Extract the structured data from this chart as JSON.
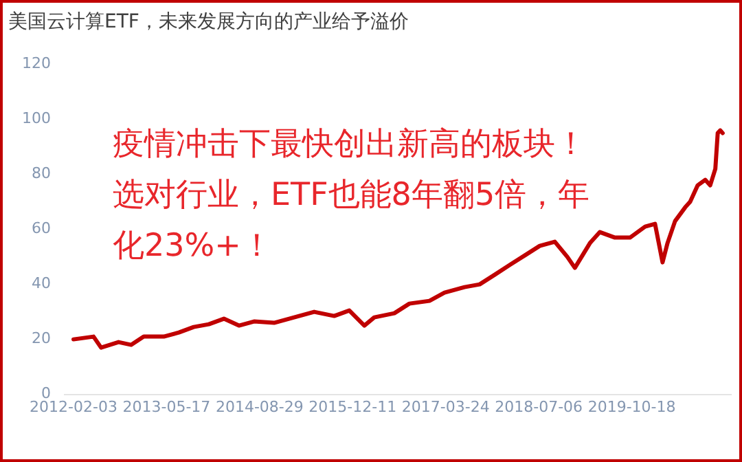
{
  "chart_data": {
    "type": "line",
    "title": "美国云计算ETF，未来发展方向的产业给予溢价",
    "annotations": [
      "疫情冲击下最快创出新高的板块！选对行业，ETF也能8年翻5倍，年化23%+！"
    ],
    "x": [
      "2012-02-03",
      "2012-05-14",
      "2012-06-21",
      "2012-09-17",
      "2012-11-20",
      "2013-01-22",
      "2013-05-03",
      "2013-07-18",
      "2013-10-01",
      "2013-12-16",
      "2014-03-02",
      "2014-05-17",
      "2014-08-01",
      "2014-11-10",
      "2015-02-19",
      "2015-05-31",
      "2015-09-09",
      "2015-11-24",
      "2016-02-08",
      "2016-03-29",
      "2016-07-08",
      "2016-09-22",
      "2017-01-01",
      "2017-03-18",
      "2017-06-27",
      "2017-09-11",
      "2017-11-26",
      "2018-02-09",
      "2018-04-26",
      "2018-07-11",
      "2018-09-25",
      "2018-11-27",
      "2019-01-04",
      "2019-03-21",
      "2019-05-10",
      "2019-07-25",
      "2019-10-09",
      "2019-12-24",
      "2020-02-12",
      "2020-03-21",
      "2020-04-15",
      "2020-05-23",
      "2020-07-13",
      "2020-08-07",
      "2020-09-14",
      "2020-10-22",
      "2020-11-16",
      "2020-12-12",
      "2020-12-24",
      "2021-01-06",
      "2021-01-18"
    ],
    "series": [
      {
        "color": "#c00000",
        "values": [
          20,
          21,
          17,
          19,
          18,
          21,
          21,
          22.5,
          24.5,
          25.5,
          27.5,
          25,
          26.5,
          26,
          28,
          30,
          28.5,
          30.5,
          25,
          28,
          29.5,
          33,
          34,
          37,
          39,
          40,
          43.5,
          47,
          50.5,
          54,
          55.5,
          50,
          46,
          55,
          59,
          57,
          57,
          61,
          62,
          48,
          55,
          63,
          68,
          70,
          76,
          78,
          76,
          82,
          95,
          96,
          95
        ]
      }
    ],
    "xlim": [
      "2011-12-20",
      "2021-03-01"
    ],
    "xticks": [
      "2012-02-03",
      "2013-05-17",
      "2014-08-29",
      "2015-12-11",
      "2017-03-24",
      "2018-07-06",
      "2019-10-18"
    ],
    "ylim": [
      0,
      120
    ],
    "yticks": [
      0,
      20,
      40,
      60,
      80,
      100,
      120
    ],
    "grid": false,
    "legend": false,
    "marker": "none",
    "line_style": "solid"
  }
}
